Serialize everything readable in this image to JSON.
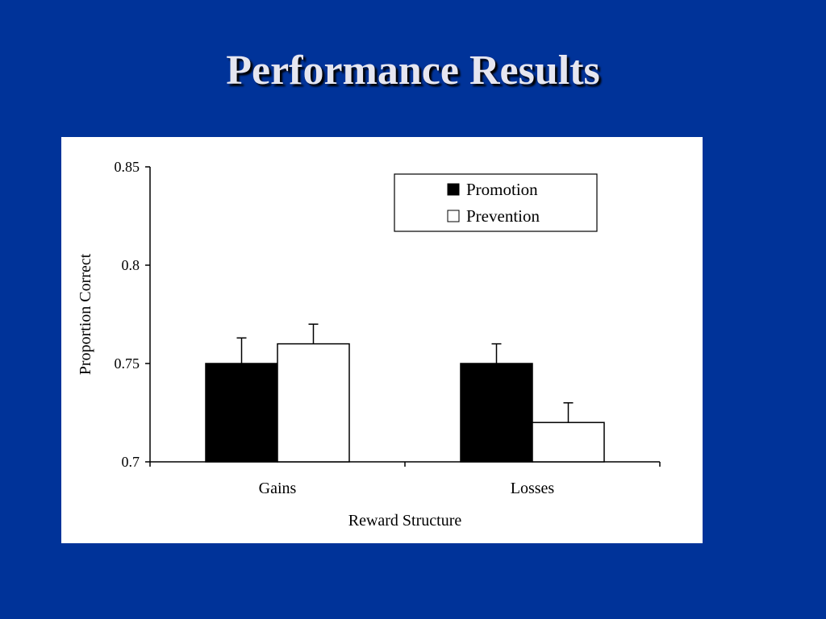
{
  "slide": {
    "title": "Performance Results",
    "background_color": "#003399",
    "panel_color": "#ffffff"
  },
  "chart_data": {
    "type": "bar",
    "title": "",
    "xlabel": "Reward Structure",
    "ylabel": "Proportion Correct",
    "categories": [
      "Gains",
      "Losses"
    ],
    "series": [
      {
        "name": "Promotion",
        "values": [
          0.75,
          0.75
        ],
        "errors": [
          0.013,
          0.01
        ],
        "color": "#000000"
      },
      {
        "name": "Prevention",
        "values": [
          0.76,
          0.72
        ],
        "errors": [
          0.01,
          0.01
        ],
        "color": "#ffffff"
      }
    ],
    "ylim": [
      0.7,
      0.85
    ],
    "yticks": [
      "0.7",
      "0.75",
      "0.8",
      "0.85"
    ],
    "grid": false,
    "legend_position": "top-right"
  }
}
